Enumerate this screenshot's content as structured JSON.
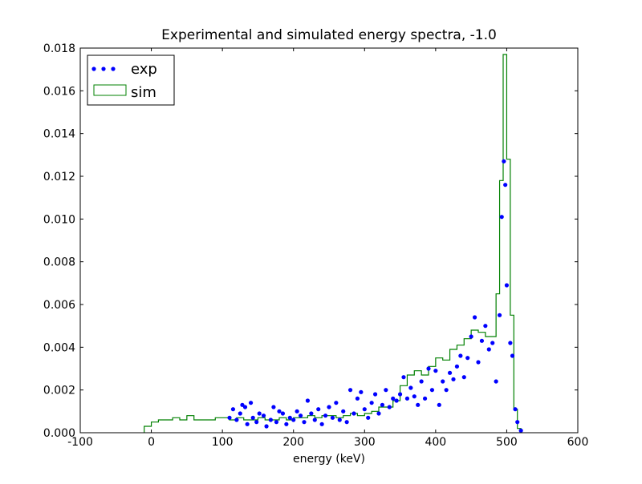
{
  "chart_data": {
    "type": "histogram_scatter",
    "title": "Experimental and simulated energy spectra, -1.0",
    "xlabel": "energy (keV)",
    "xlim": [
      -100,
      600
    ],
    "xticks": [
      -100,
      0,
      100,
      200,
      300,
      400,
      500,
      600
    ],
    "ylim": [
      0,
      0.018
    ],
    "yticks": [
      {
        "value": 0,
        "label": "0.000"
      },
      {
        "value": 0.002,
        "label": "0.002"
      },
      {
        "value": 0.004,
        "label": "0.004"
      },
      {
        "value": 0.006,
        "label": "0.006"
      },
      {
        "value": 0.008,
        "label": "0.008"
      },
      {
        "value": 0.01,
        "label": "0.010"
      },
      {
        "value": 0.012,
        "label": "0.012"
      },
      {
        "value": 0.014,
        "label": "0.014"
      },
      {
        "value": 0.016,
        "label": "0.016"
      },
      {
        "value": 0.018,
        "label": "0.018"
      }
    ],
    "legend": "upper left",
    "scatter": {
      "name": "exp",
      "color": "#0000ff",
      "x": [
        110,
        115,
        120,
        125,
        128,
        132,
        135,
        140,
        143,
        148,
        152,
        158,
        162,
        168,
        172,
        176,
        180,
        185,
        190,
        195,
        200,
        205,
        210,
        215,
        220,
        225,
        230,
        235,
        240,
        245,
        250,
        255,
        260,
        265,
        270,
        275,
        280,
        285,
        290,
        295,
        300,
        305,
        310,
        315,
        320,
        325,
        330,
        335,
        340,
        345,
        350,
        355,
        360,
        365,
        370,
        375,
        380,
        385,
        390,
        395,
        400,
        405,
        410,
        415,
        420,
        425,
        430,
        435,
        440,
        445,
        450,
        455,
        460,
        465,
        470,
        475,
        480,
        485,
        490,
        493,
        496,
        498,
        500,
        505,
        508,
        512,
        515,
        520
      ],
      "values": [
        0.0007,
        0.0011,
        0.0006,
        0.0009,
        0.0013,
        0.0012,
        0.0004,
        0.0014,
        0.0007,
        0.0005,
        0.0009,
        0.0008,
        0.0003,
        0.0006,
        0.0012,
        0.0005,
        0.001,
        0.0009,
        0.0004,
        0.0007,
        0.0006,
        0.001,
        0.0008,
        0.0005,
        0.0015,
        0.0009,
        0.0006,
        0.0011,
        0.0004,
        0.0008,
        0.0012,
        0.0007,
        0.0014,
        0.0006,
        0.001,
        0.0005,
        0.002,
        0.0009,
        0.0016,
        0.0019,
        0.0011,
        0.0007,
        0.0014,
        0.0018,
        0.0009,
        0.0013,
        0.002,
        0.0012,
        0.0016,
        0.0015,
        0.0018,
        0.0026,
        0.0016,
        0.0021,
        0.0017,
        0.0013,
        0.0024,
        0.0016,
        0.003,
        0.002,
        0.0029,
        0.0013,
        0.0024,
        0.002,
        0.0028,
        0.0025,
        0.0031,
        0.0036,
        0.0026,
        0.0035,
        0.0045,
        0.0054,
        0.0033,
        0.0043,
        0.005,
        0.0039,
        0.0042,
        0.0024,
        0.0055,
        0.0101,
        0.0127,
        0.0116,
        0.0069,
        0.0042,
        0.0036,
        0.0011,
        0.0005,
        0.0001
      ]
    },
    "histogram": {
      "name": "sim",
      "color": "#008000",
      "bins": [
        -10,
        0,
        10,
        20,
        30,
        40,
        50,
        60,
        70,
        80,
        90,
        100,
        110,
        120,
        130,
        140,
        150,
        160,
        170,
        180,
        190,
        200,
        210,
        220,
        230,
        240,
        250,
        260,
        270,
        280,
        290,
        300,
        310,
        320,
        330,
        340,
        350,
        360,
        370,
        380,
        390,
        400,
        410,
        420,
        430,
        440,
        450,
        460,
        470,
        480,
        485,
        490,
        495,
        500,
        505,
        510,
        515,
        520
      ],
      "values": [
        0.0003,
        0.0005,
        0.0006,
        0.0006,
        0.0007,
        0.0006,
        0.0008,
        0.0006,
        0.0006,
        0.0006,
        0.0007,
        0.0007,
        0.0006,
        0.0007,
        0.0006,
        0.0006,
        0.0007,
        0.0006,
        0.0006,
        0.0007,
        0.0006,
        0.0007,
        0.0007,
        0.0008,
        0.0007,
        0.0008,
        0.0008,
        0.0007,
        0.0008,
        0.0009,
        0.0008,
        0.0009,
        0.001,
        0.0012,
        0.0012,
        0.0015,
        0.0022,
        0.0027,
        0.0029,
        0.0027,
        0.0031,
        0.0035,
        0.0034,
        0.0039,
        0.0041,
        0.0044,
        0.0048,
        0.0047,
        0.0045,
        0.0045,
        0.0065,
        0.0118,
        0.0177,
        0.0128,
        0.0055,
        0.0011,
        0.0002
      ]
    }
  }
}
